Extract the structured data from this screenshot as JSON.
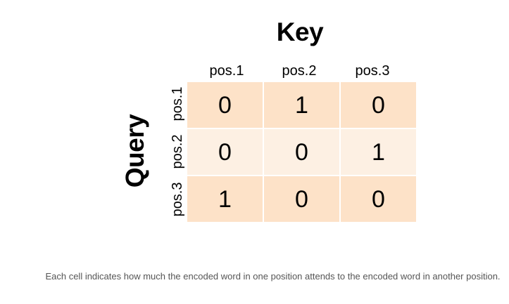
{
  "matrix": {
    "key_title": "Key",
    "query_title": "Query",
    "col_headers": [
      "pos.1",
      "pos.2",
      "pos.3"
    ],
    "row_headers": [
      "pos.1",
      "pos.2",
      "pos.3"
    ],
    "rows": [
      [
        "0",
        "1",
        "0"
      ],
      [
        "0",
        "0",
        "1"
      ],
      [
        "1",
        "0",
        "0"
      ]
    ],
    "colors": {
      "dark_cell": "#fde2c8",
      "light_cell": "#fdf0e3"
    }
  },
  "caption": "Each cell indicates how much the encoded word in one position attends to the encoded word in another position."
}
